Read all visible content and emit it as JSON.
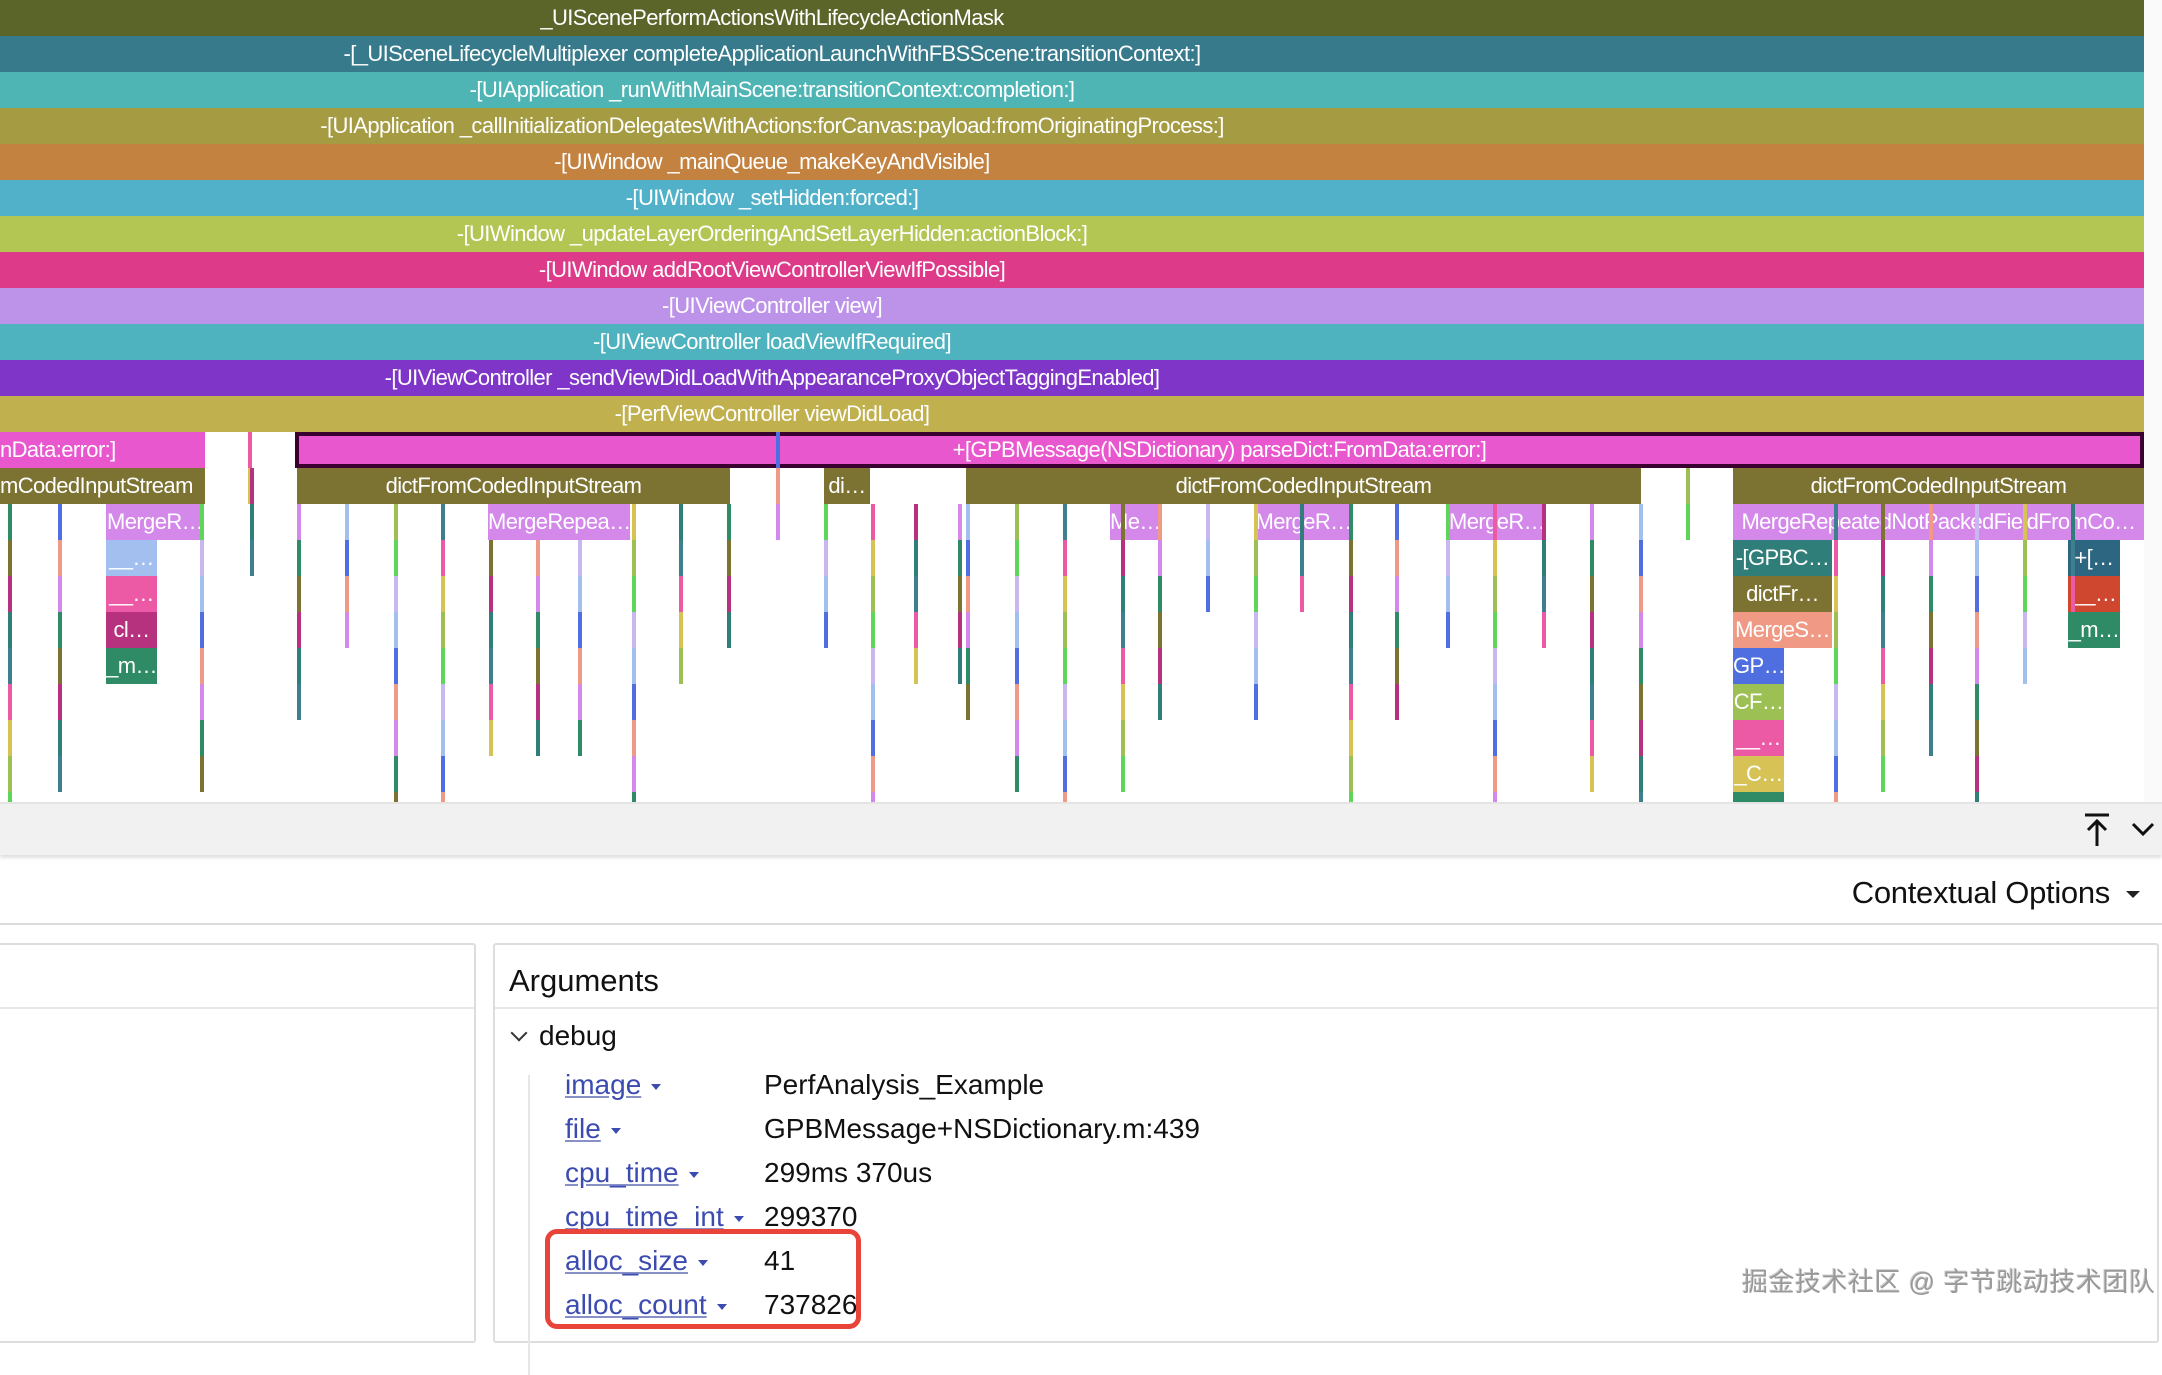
{
  "flamegraph": {
    "stack": [
      {
        "label": "_UIScenePerformActionsWithLifecycleActionMask",
        "color": "#5b6429"
      },
      {
        "label": "-[_UISceneLifecycleMultiplexer completeApplicationLaunchWithFBSScene:transitionContext:]",
        "color": "#367a8b"
      },
      {
        "label": "-[UIApplication _runWithMainScene:transitionContext:completion:]",
        "color": "#4fb4b4"
      },
      {
        "label": "-[UIApplication _callInitializationDelegatesWithActions:forCanvas:payload:fromOriginatingProcess:]",
        "color": "#a49b42"
      },
      {
        "label": "-[UIWindow _mainQueue_makeKeyAndVisible]",
        "color": "#c38240"
      },
      {
        "label": "-[UIWindow _setHidden:forced:]",
        "color": "#50b1c8"
      },
      {
        "label": "-[UIWindow _updateLayerOrderingAndSetLayerHidden:actionBlock:]",
        "color": "#b3c553"
      },
      {
        "label": "-[UIWindow addRootViewControllerViewIfPossible]",
        "color": "#dd3a89"
      },
      {
        "label": "-[UIViewController view]",
        "color": "#bd93ea"
      },
      {
        "label": "-[UIViewController loadViewIfRequired]",
        "color": "#4fb2bf"
      },
      {
        "label": "-[UIViewController _sendViewDidLoadWithAppearanceProxyObjectTaggingEnabled]",
        "color": "#7e35c8"
      },
      {
        "label": "-[PerfViewController viewDidLoad]",
        "color": "#c0b04e"
      }
    ],
    "selected": {
      "label": "+[GPBMessage(NSDictionary) parseDict:FromData:error:]",
      "color": "#e957cf",
      "border": "#3a0030"
    },
    "left_truncated": {
      "label": "nData:error:]",
      "color": "#e957cf"
    },
    "row_dict": [
      {
        "label": "mCodedInputStream"
      },
      {
        "label": "dictFromCodedInputStream"
      },
      {
        "label": "di…"
      },
      {
        "label": "dictFromCodedInputStream"
      },
      {
        "label": "dictFromCodedInputStream"
      }
    ],
    "dict_color": "#7c7232",
    "row_merge": [
      {
        "label": "MergeR…"
      },
      {
        "label": "MergeRepea…"
      },
      {
        "label": "Me…"
      },
      {
        "label": "MergeR…"
      },
      {
        "label": "MergeR…"
      },
      {
        "label": "MergeRepeatedNotPackedFieldFromCo…"
      }
    ],
    "merge_color": "#d388ea",
    "col_a": [
      {
        "label": "__…",
        "color": "#a3bff0"
      },
      {
        "label": "__…",
        "color": "#ec5aa5"
      },
      {
        "label": "cl…",
        "color": "#b7327e"
      },
      {
        "label": "_m…",
        "color": "#2f8a66"
      }
    ],
    "col_b": [
      {
        "label": "-[GPBC…",
        "color": "#2f7e7a"
      },
      {
        "label": "dictFr…",
        "color": "#7c7232"
      },
      {
        "label": "MergeS…",
        "color": "#f09a85"
      },
      {
        "label": "GP…",
        "color": "#4f6ee0"
      },
      {
        "label": "CF…",
        "color": "#9cc054"
      },
      {
        "label": "__…",
        "color": "#ec5aa5"
      },
      {
        "label": "_C…",
        "color": "#d6c255"
      }
    ],
    "col_c": [
      {
        "label": "+[…",
        "color": "#2c6680"
      },
      {
        "label": "__…",
        "color": "#d0472f"
      },
      {
        "label": "_m…",
        "color": "#2f8a66"
      }
    ]
  },
  "toolbar": {
    "pin_icon": "arrow-up-to-line",
    "collapse_icon": "chevron-down"
  },
  "details": {
    "contextual_options": "Contextual Options",
    "arguments_title": "Arguments",
    "group": "debug",
    "args": [
      {
        "key": "image",
        "value": "PerfAnalysis_Example"
      },
      {
        "key": "file",
        "value": "GPBMessage+NSDictionary.m:439"
      },
      {
        "key": "cpu_time",
        "value": "299ms 370us"
      },
      {
        "key": "cpu_time_int",
        "value": "299370"
      },
      {
        "key": "alloc_size",
        "value": "41"
      },
      {
        "key": "alloc_count",
        "value": "737826"
      }
    ],
    "highlight_color": "#e8443a"
  },
  "watermark": "掘金技术社区 @ 字节跳动技术团队"
}
